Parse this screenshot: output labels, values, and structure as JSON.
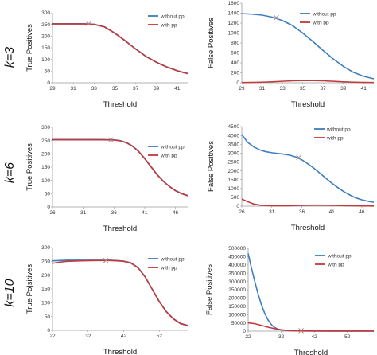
{
  "colors": {
    "without": "#3d7ebf",
    "with": "#c0393b",
    "axis": "#9a9a9a",
    "marker": "#b08a8a"
  },
  "rows": [
    {
      "label": "k=3"
    },
    {
      "label": "k=6"
    },
    {
      "label": "k=10"
    }
  ],
  "chart_data": [
    {
      "type": "line",
      "row": 0,
      "panel": "tp",
      "xlabel": "Threshold",
      "ylabel": "True Positives",
      "xlim": [
        29,
        42
      ],
      "ylim": [
        0,
        300
      ],
      "xticks": [
        "29",
        "31",
        "33",
        "35",
        "37",
        "39",
        "41"
      ],
      "yticks": [
        "0",
        "50",
        "100",
        "150",
        "200",
        "250",
        "300"
      ],
      "marker": {
        "x": 32.5,
        "y": 253
      },
      "series": [
        {
          "name": "without pp",
          "color": "#3d7ebf",
          "x": [
            29,
            30,
            31,
            32,
            33,
            34,
            35,
            36,
            37,
            38,
            39,
            40,
            41,
            42
          ],
          "y": [
            253,
            253,
            253,
            253,
            251,
            240,
            213,
            180,
            145,
            113,
            88,
            68,
            52,
            40
          ]
        },
        {
          "name": "with pp",
          "color": "#c0393b",
          "x": [
            29,
            30,
            31,
            32,
            33,
            34,
            35,
            36,
            37,
            38,
            39,
            40,
            41,
            42
          ],
          "y": [
            252,
            252,
            252,
            252,
            250,
            239,
            212,
            179,
            144,
            112,
            87,
            67,
            51,
            39
          ]
        }
      ]
    },
    {
      "type": "line",
      "row": 0,
      "panel": "fp",
      "xlabel": "Threshold",
      "ylabel": "False Positives",
      "xlim": [
        29,
        42
      ],
      "ylim": [
        0,
        1600
      ],
      "xticks": [
        "29",
        "31",
        "33",
        "35",
        "37",
        "39",
        "41"
      ],
      "yticks": [
        "0",
        "200",
        "400",
        "600",
        "800",
        "1000",
        "1200",
        "1400",
        "1600"
      ],
      "marker": {
        "x": 32.4,
        "y": 1310
      },
      "series": [
        {
          "name": "without pp",
          "color": "#3d7ebf",
          "x": [
            29,
            30,
            31,
            32,
            33,
            34,
            35,
            36,
            37,
            38,
            39,
            40,
            41,
            42
          ],
          "y": [
            1390,
            1380,
            1360,
            1320,
            1250,
            1150,
            1000,
            830,
            650,
            480,
            330,
            210,
            130,
            80
          ]
        },
        {
          "name": "with pp",
          "color": "#c0393b",
          "x": [
            29,
            30,
            31,
            32,
            33,
            34,
            35,
            36,
            37,
            38,
            39,
            40,
            41,
            42
          ],
          "y": [
            5,
            8,
            12,
            20,
            30,
            40,
            45,
            45,
            40,
            30,
            20,
            12,
            8,
            5
          ]
        }
      ]
    },
    {
      "type": "line",
      "row": 1,
      "panel": "tp",
      "xlabel": "Threshold",
      "ylabel": "True Positives",
      "xlim": [
        26,
        48
      ],
      "ylim": [
        0,
        300
      ],
      "xticks": [
        "26",
        "31",
        "36",
        "41",
        "46"
      ],
      "yticks": [
        "0",
        "50",
        "100",
        "150",
        "200",
        "250",
        "300"
      ],
      "marker": {
        "x": 35.5,
        "y": 253
      },
      "series": [
        {
          "name": "without pp",
          "color": "#3d7ebf",
          "x": [
            26,
            28,
            30,
            32,
            34,
            36,
            37,
            38,
            39,
            40,
            41,
            42,
            43,
            44,
            45,
            46,
            47,
            48
          ],
          "y": [
            254,
            254,
            254,
            254,
            254,
            253,
            250,
            243,
            230,
            210,
            183,
            153,
            123,
            98,
            78,
            62,
            51,
            43
          ]
        },
        {
          "name": "with pp",
          "color": "#c0393b",
          "x": [
            26,
            28,
            30,
            32,
            34,
            36,
            37,
            38,
            39,
            40,
            41,
            42,
            43,
            44,
            45,
            46,
            47,
            48
          ],
          "y": [
            253,
            253,
            253,
            253,
            253,
            252,
            249,
            242,
            229,
            209,
            182,
            152,
            122,
            97,
            77,
            61,
            50,
            42
          ]
        }
      ]
    },
    {
      "type": "line",
      "row": 1,
      "panel": "fp",
      "xlabel": "Threshold",
      "ylabel": "False Positives",
      "xlim": [
        26,
        48
      ],
      "ylim": [
        0,
        4500
      ],
      "xticks": [
        "26",
        "31",
        "36",
        "41",
        "46"
      ],
      "yticks": [
        "0",
        "500",
        "1000",
        "1500",
        "2000",
        "2500",
        "3000",
        "3500",
        "4000",
        "4500"
      ],
      "marker": {
        "x": 35.5,
        "y": 2750
      },
      "series": [
        {
          "name": "without pp",
          "color": "#3d7ebf",
          "x": [
            26,
            27,
            28,
            29,
            30,
            31,
            32,
            33,
            34,
            35,
            36,
            37,
            38,
            39,
            40,
            41,
            42,
            43,
            44,
            45,
            46,
            47,
            48
          ],
          "y": [
            4050,
            3600,
            3350,
            3180,
            3080,
            3020,
            2980,
            2940,
            2880,
            2780,
            2620,
            2400,
            2150,
            1870,
            1580,
            1300,
            1050,
            820,
            630,
            470,
            360,
            280,
            220
          ]
        },
        {
          "name": "with pp",
          "color": "#c0393b",
          "x": [
            26,
            27,
            28,
            29,
            30,
            31,
            32,
            33,
            34,
            35,
            36,
            37,
            38,
            39,
            40,
            41,
            42,
            43,
            44,
            45,
            46,
            47,
            48
          ],
          "y": [
            400,
            250,
            120,
            60,
            35,
            25,
            22,
            22,
            25,
            35,
            45,
            55,
            60,
            60,
            55,
            48,
            40,
            32,
            25,
            20,
            15,
            12,
            10
          ]
        }
      ]
    },
    {
      "type": "line",
      "row": 2,
      "panel": "tp",
      "xlabel": "Threshold",
      "ylabel": "True Po|sitives",
      "xlim": [
        22,
        60
      ],
      "ylim": [
        0,
        300
      ],
      "xticks": [
        "22",
        "32",
        "42",
        "52"
      ],
      "yticks": [
        "0",
        "50",
        "100",
        "150",
        "200",
        "250",
        "300"
      ],
      "marker": {
        "x": 37,
        "y": 253
      },
      "series": [
        {
          "name": "without pp",
          "color": "#3d7ebf",
          "x": [
            22,
            24,
            26,
            30,
            34,
            38,
            40,
            42,
            44,
            46,
            48,
            50,
            52,
            54,
            56,
            58,
            60
          ],
          "y": [
            252,
            253,
            254,
            254,
            254,
            254,
            253,
            251,
            245,
            228,
            195,
            150,
            105,
            68,
            42,
            25,
            18
          ]
        },
        {
          "name": "with pp",
          "color": "#c0393b",
          "x": [
            22,
            24,
            26,
            30,
            34,
            38,
            40,
            42,
            44,
            46,
            48,
            50,
            52,
            54,
            56,
            58,
            60
          ],
          "y": [
            243,
            247,
            250,
            252,
            253,
            253,
            252,
            250,
            244,
            227,
            194,
            149,
            104,
            67,
            41,
            24,
            17
          ]
        }
      ]
    },
    {
      "type": "line",
      "row": 2,
      "panel": "fp",
      "xlabel": "Threshold",
      "ylabel": "False Positives",
      "xlim": [
        22,
        60
      ],
      "ylim": [
        0,
        500000
      ],
      "xticks": [
        "22",
        "32",
        "42",
        "52"
      ],
      "yticks": [
        "0",
        "50000",
        "100000",
        "150000",
        "200000",
        "250000",
        "300000",
        "350000",
        "400000",
        "450000",
        "500000"
      ],
      "marker": {
        "x": 38,
        "y": 3000
      },
      "series": [
        {
          "name": "without pp",
          "color": "#3d7ebf",
          "x": [
            22,
            23,
            24,
            25,
            26,
            27,
            28,
            29,
            30,
            31,
            32,
            34,
            36,
            38,
            40,
            44,
            48,
            52,
            56,
            60
          ],
          "y": [
            470000,
            380000,
            300000,
            225000,
            160000,
            108000,
            68000,
            40000,
            22000,
            12000,
            7000,
            3500,
            2200,
            1500,
            1000,
            600,
            400,
            300,
            200,
            150
          ]
        },
        {
          "name": "with pp",
          "color": "#c0393b",
          "x": [
            22,
            24,
            26,
            28,
            30,
            32,
            34,
            36,
            38,
            40,
            44,
            48,
            52,
            56,
            60
          ],
          "y": [
            50000,
            45000,
            35000,
            24000,
            15000,
            8000,
            4000,
            2000,
            1200,
            800,
            500,
            350,
            250,
            180,
            120
          ]
        }
      ]
    }
  ]
}
